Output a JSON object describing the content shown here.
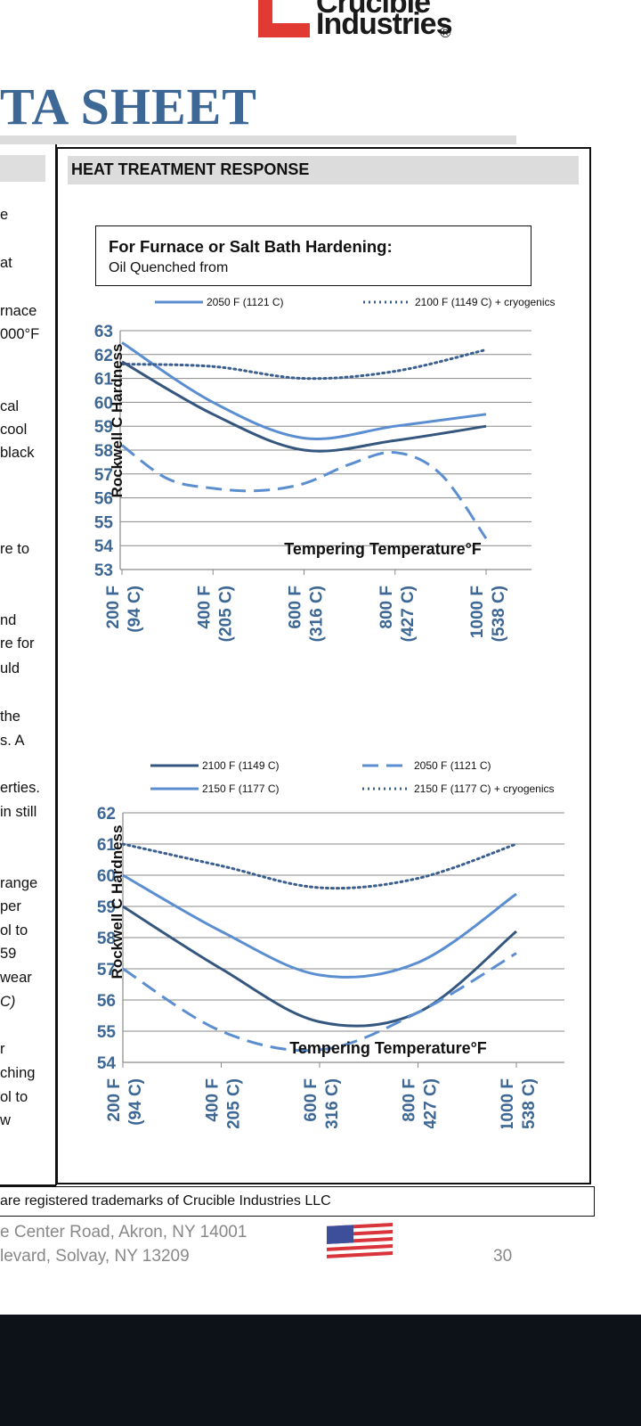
{
  "header": {
    "logo_line1": "Crucible",
    "logo_line2": "Industries",
    "logo_registered": "®",
    "doc_title": "TA SHEET"
  },
  "left_column": {
    "fragments": [
      {
        "text": "e",
        "italic": false
      },
      {
        "text": "at",
        "italic": false
      },
      {
        "text": "rnace",
        "italic": false
      },
      {
        "text": "000°F",
        "italic": false
      },
      {
        "text": "cal",
        "italic": false
      },
      {
        "text": "cool",
        "italic": false
      },
      {
        "text": "black",
        "italic": false
      },
      {
        "text": "re to",
        "italic": false
      },
      {
        "text": "nd",
        "italic": false
      },
      {
        "text": "re for",
        "italic": false
      },
      {
        "text": "uld",
        "italic": false
      },
      {
        "text": "the",
        "italic": false
      },
      {
        "text": "s.  A",
        "italic": false
      },
      {
        "text": "erties.",
        "italic": false
      },
      {
        "text": "in still",
        "italic": false
      },
      {
        "text": "range",
        "italic": false
      },
      {
        "text": "per",
        "italic": false
      },
      {
        "text": "ol to",
        "italic": false
      },
      {
        "text": "59",
        "italic": false
      },
      {
        "text": "wear",
        "italic": false
      },
      {
        "text": "C)",
        "italic": true
      },
      {
        "text": "r",
        "italic": false
      },
      {
        "text": "ching",
        "italic": false
      },
      {
        "text": "ol to",
        "italic": false
      },
      {
        "text": "w",
        "italic": false
      }
    ]
  },
  "section": {
    "title": "HEAT TREATMENT RESPONSE",
    "callout_title": "For Furnace or Salt Bath Hardening:",
    "callout_subtitle": "Oil Quenched from"
  },
  "chart_data": [
    {
      "type": "line",
      "ylabel": "Rockwell C Hardness",
      "xlabel": "Tempering Temperature°F",
      "ylim": [
        53,
        63
      ],
      "yticks": [
        53,
        54,
        55,
        56,
        57,
        58,
        59,
        60,
        61,
        62,
        63
      ],
      "x_categories": [
        {
          "line1": "200 F",
          "line2": "(94 C)"
        },
        {
          "line1": "400 F",
          "line2": "(205 C)"
        },
        {
          "line1": "600 F",
          "line2": "(316 C)"
        },
        {
          "line1": "800 F",
          "line2": "(427 C)"
        },
        {
          "line1": "1000 F",
          "line2": "(538 C)"
        }
      ],
      "grid": true,
      "legend_position": "top",
      "series": [
        {
          "name": "2050 F (1121 C)",
          "style": "solid",
          "color": "#5b8ed0",
          "legend": true,
          "x": [
            200,
            400,
            600,
            800,
            1000
          ],
          "values": [
            62.5,
            60.0,
            58.5,
            59.0,
            59.5
          ]
        },
        {
          "name": "2100 F (1149 C) + cryogenics",
          "style": "dotted",
          "color": "#3a5f8e",
          "legend": true,
          "x": [
            200,
            400,
            600,
            800,
            1000
          ],
          "values": [
            61.6,
            61.5,
            61.0,
            61.3,
            62.2
          ]
        },
        {
          "name": "",
          "style": "solid",
          "color": "#35577f",
          "legend": false,
          "x": [
            200,
            400,
            600,
            800,
            1000
          ],
          "values": [
            61.7,
            59.5,
            58.0,
            58.4,
            59.0
          ]
        },
        {
          "name": "",
          "style": "dashed",
          "color": "#5b8ed0",
          "legend": false,
          "x": [
            200,
            300,
            400,
            500,
            600,
            700,
            800,
            900,
            1000
          ],
          "values": [
            58.2,
            56.8,
            56.4,
            56.3,
            56.6,
            57.4,
            57.9,
            57.0,
            54.3
          ]
        }
      ]
    },
    {
      "type": "line",
      "ylabel": "Rockwell C Hardness",
      "xlabel": "Tempering Temperature°F",
      "ylim": [
        54,
        62
      ],
      "yticks": [
        54,
        55,
        56,
        57,
        58,
        59,
        60,
        61,
        62
      ],
      "x_categories": [
        {
          "line1": "200 F",
          "line2": "(94 C)"
        },
        {
          "line1": "400 F",
          "line2": "(205 C)"
        },
        {
          "line1": "600 F",
          "line2": "(316 C)"
        },
        {
          "line1": "800 F",
          "line2": "(427 C)"
        },
        {
          "line1": "1000 F",
          "line2": "(538 C)"
        }
      ],
      "grid": true,
      "legend_position": "top",
      "series": [
        {
          "name": "2100 F (1149 C)",
          "style": "solid",
          "color": "#35577f",
          "x": [
            200,
            400,
            600,
            800,
            1000
          ],
          "values": [
            59.0,
            57.0,
            55.3,
            55.6,
            58.2
          ]
        },
        {
          "name": "2050 F (1121 C)",
          "style": "dashed",
          "color": "#5b8ed0",
          "x": [
            200,
            400,
            600,
            800,
            1000
          ],
          "values": [
            57.0,
            55.0,
            54.4,
            55.6,
            57.5
          ]
        },
        {
          "name": "2150 F (1177 C)",
          "style": "solid",
          "color": "#5b8ed0",
          "x": [
            200,
            400,
            600,
            800,
            1000
          ],
          "values": [
            60.0,
            58.2,
            56.8,
            57.2,
            59.4
          ]
        },
        {
          "name": "2150 F (1177 C) + cryogenics",
          "style": "dotted",
          "color": "#3a5f8e",
          "x": [
            200,
            400,
            600,
            800,
            1000
          ],
          "values": [
            61.0,
            60.3,
            59.6,
            59.9,
            61.0
          ]
        }
      ]
    }
  ],
  "footer": {
    "trademark": "are registered trademarks of Crucible Industries LLC",
    "address1": "e Center Road, Akron, NY 14001",
    "address2": "levard, Solvay, NY 13209",
    "page_number": "30"
  }
}
